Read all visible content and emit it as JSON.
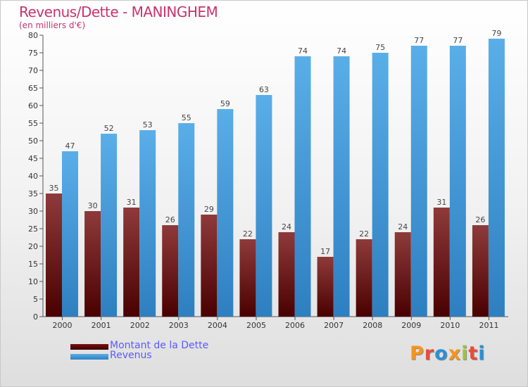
{
  "title": "Revenus/Dette - MANINGHEM",
  "subtitle": "(en milliers d'€)",
  "logo": {
    "text": "Proxiti",
    "colors": [
      "#f7941d",
      "#e84c3d",
      "#2c8fd6",
      "#f7941d",
      "#9bc53d",
      "#e84c3d",
      "#2c8fd6"
    ]
  },
  "colors": {
    "debt": "#8b2a2a",
    "revenue": "#4fa3e0",
    "title": "#c8336d",
    "legend_text": "#5a5aff"
  },
  "chart_data": {
    "type": "bar",
    "title": "Revenus/Dette - MANINGHEM",
    "subtitle": "(en milliers d'€)",
    "categories": [
      "2000",
      "2001",
      "2002",
      "2003",
      "2004",
      "2005",
      "2006",
      "2007",
      "2008",
      "2009",
      "2010",
      "2011"
    ],
    "series": [
      {
        "name": "Montant de la Dette",
        "values": [
          35,
          30,
          31,
          26,
          29,
          22,
          24,
          17,
          22,
          24,
          31,
          26
        ]
      },
      {
        "name": "Revenus",
        "values": [
          47,
          52,
          53,
          55,
          59,
          63,
          74,
          74,
          75,
          77,
          77,
          79
        ]
      }
    ],
    "ylim": [
      0,
      80
    ],
    "yticks": [
      0,
      5,
      10,
      15,
      20,
      25,
      30,
      35,
      40,
      45,
      50,
      55,
      60,
      65,
      70,
      75,
      80
    ],
    "grid": false,
    "data_labels": true,
    "legend_position": "bottom-left"
  }
}
